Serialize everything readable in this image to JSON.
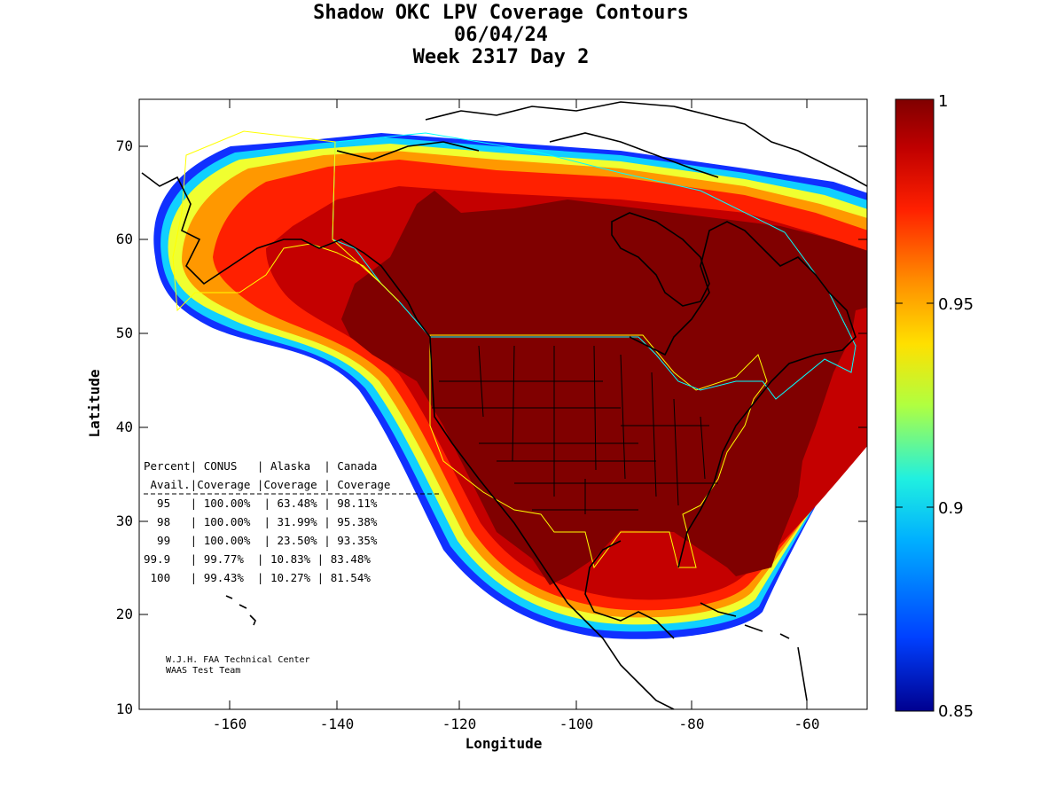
{
  "title": {
    "line1": "Shadow OKC LPV Coverage Contours",
    "line2": "06/04/24",
    "line3": "Week 2317 Day 2"
  },
  "axes": {
    "xlabel": "Longitude",
    "ylabel": "Latitude",
    "xticks": [
      "-160",
      "-140",
      "-120",
      "-100",
      "-80",
      "-60"
    ],
    "yticks": [
      "10",
      "20",
      "30",
      "40",
      "50",
      "60",
      "70"
    ]
  },
  "colorbar": {
    "labels": [
      "1",
      "0.95",
      "0.9",
      "0.85"
    ],
    "colors": [
      "#00008f",
      "#0050ff",
      "#00c8ff",
      "#50ffb0",
      "#e0ff20",
      "#ffb000",
      "#ff3000",
      "#c00000",
      "#800000"
    ]
  },
  "table": {
    "header1": "Percent| CONUS   | Alaska  | Canada",
    "header2": " Avail.|Coverage |Coverage | Coverage",
    "rows": [
      "  95   | 100.00%  | 63.48% | 98.11%",
      "  98   | 100.00%  | 31.99% | 95.38%",
      "  99   | 100.00%  | 23.50% | 93.35%",
      "99.9   | 99.77%  | 10.83% | 83.48%",
      " 100   | 99.43%  | 10.27% | 81.54%"
    ]
  },
  "credit": {
    "line1": "W.J.H. FAA Technical Center",
    "line2": "WAAS Test Team"
  },
  "colors": {
    "core": "#800000",
    "outline": "#000000",
    "conus_boundary": "#ffff00",
    "canada_boundary": "#00ffff"
  }
}
